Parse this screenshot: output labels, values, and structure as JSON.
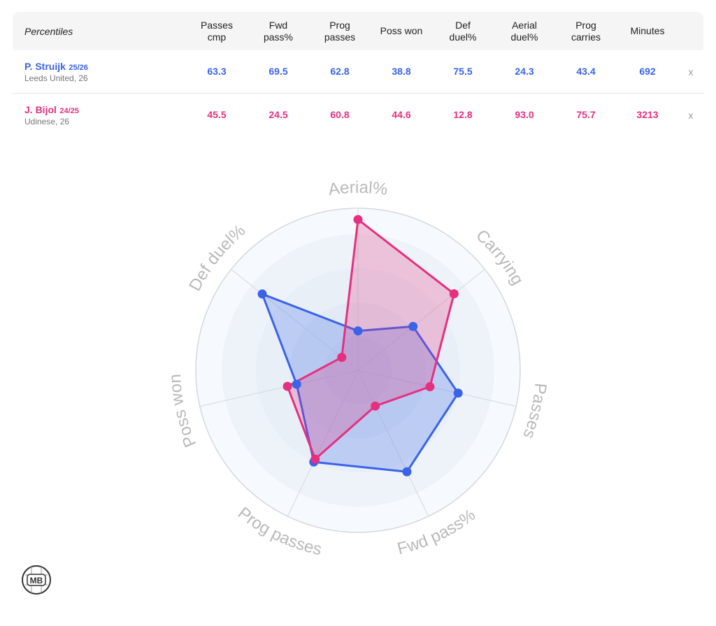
{
  "table": {
    "label_header": "Percentiles",
    "columns": [
      "Passes\ncmp",
      "Fwd\npass%",
      "Prog\npasses",
      "Poss won",
      "Def\nduel%",
      "Aerial\nduel%",
      "Prog\ncarries",
      "Minutes"
    ],
    "remove_label": "x",
    "players": [
      {
        "name": "P. Struijk",
        "season": "25/26",
        "team": "Leeds United, 26",
        "values": [
          "63.3",
          "69.5",
          "62.8",
          "38.8",
          "75.5",
          "24.3",
          "43.4",
          "692"
        ],
        "color": "#3a63e8"
      },
      {
        "name": "J. Bijol",
        "season": "24/25",
        "team": "Udinese, 26",
        "values": [
          "45.5",
          "24.5",
          "60.8",
          "44.6",
          "12.8",
          "93.0",
          "75.7",
          "3213"
        ],
        "color": "#e5307f"
      }
    ]
  },
  "chart_data": {
    "type": "radar",
    "axes": [
      "Aerial%",
      "Carrying",
      "Passes",
      "Fwd pass%",
      "Prog passes",
      "Poss won",
      "Def duel%"
    ],
    "range": [
      0,
      100
    ],
    "series": [
      {
        "name": "P. Struijk",
        "values": [
          24.3,
          43.4,
          63.3,
          69.5,
          62.8,
          38.8,
          75.5
        ],
        "color": "#3a63e8"
      },
      {
        "name": "J. Bijol",
        "values": [
          93.0,
          75.7,
          45.5,
          24.5,
          60.8,
          44.6,
          12.8
        ],
        "color": "#e5307f"
      }
    ]
  },
  "logo": {
    "text": "MB"
  }
}
